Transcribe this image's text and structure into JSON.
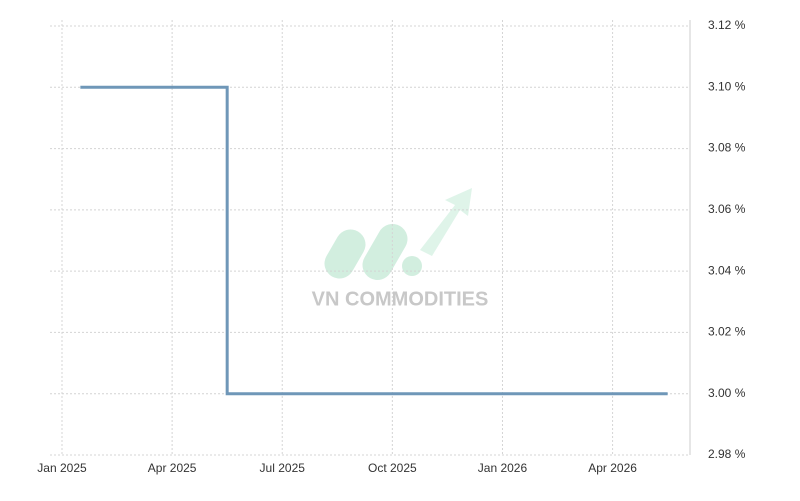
{
  "chart_data": {
    "type": "line",
    "watermark": "VN COMMODITIES",
    "x": [
      "2025-01",
      "2025-05",
      "2025-05",
      "2026-05"
    ],
    "series": [
      {
        "color": "#6f97b8",
        "values": [
          3.1,
          3.1,
          3.0,
          3.0
        ]
      }
    ],
    "xlim": [
      "2025-01",
      "2026-06"
    ],
    "xticks": [
      {
        "value": "2025-01",
        "label": "Jan 2025"
      },
      {
        "value": "2025-04",
        "label": "Apr 2025"
      },
      {
        "value": "2025-07",
        "label": "Jul 2025"
      },
      {
        "value": "2025-10",
        "label": "Oct 2025"
      },
      {
        "value": "2026-01",
        "label": "Jan 2026"
      },
      {
        "value": "2026-04",
        "label": "Apr 2026"
      }
    ],
    "ylim": [
      2.98,
      3.12
    ],
    "yticks": [
      {
        "value": 2.98,
        "label": "2.98 %"
      },
      {
        "value": 3.0,
        "label": "3.00 %"
      },
      {
        "value": 3.02,
        "label": "3.02 %"
      },
      {
        "value": 3.04,
        "label": "3.04 %"
      },
      {
        "value": 3.06,
        "label": "3.06 %"
      },
      {
        "value": 3.08,
        "label": "3.08 %"
      },
      {
        "value": 3.1,
        "label": "3.10 %"
      },
      {
        "value": 3.12,
        "label": "3.12 %"
      }
    ],
    "grid": true
  }
}
